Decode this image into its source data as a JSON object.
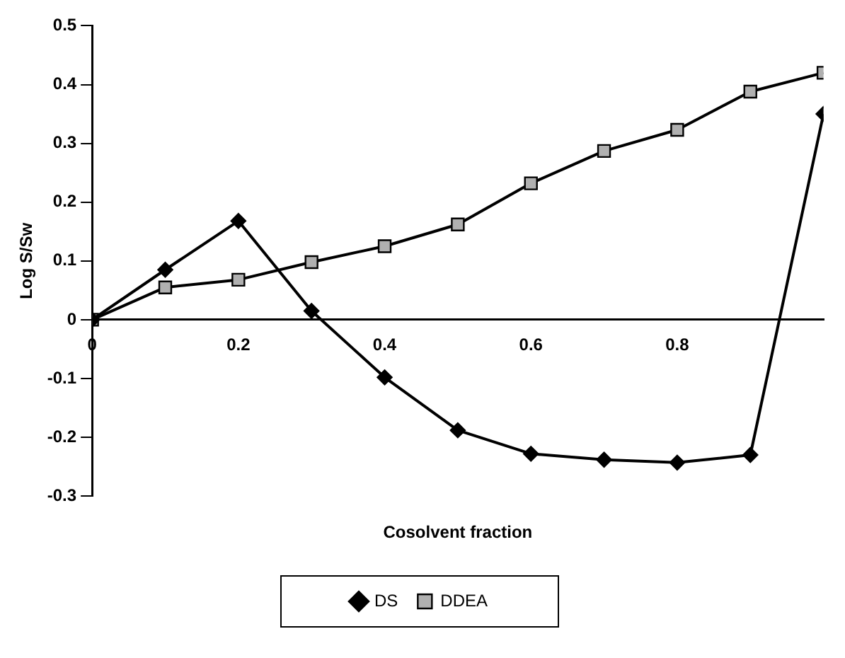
{
  "chart_data": {
    "type": "line",
    "xlabel": "Cosolvent fraction",
    "ylabel": "Log S/Sw",
    "x": [
      0,
      0.1,
      0.2,
      0.3,
      0.4,
      0.5,
      0.6,
      0.7,
      0.8,
      0.9,
      1.0
    ],
    "series": [
      {
        "name": "DS",
        "color": "#000000",
        "marker": "diamond",
        "values": [
          0,
          0.085,
          0.168,
          0.015,
          -0.098,
          -0.188,
          -0.228,
          -0.238,
          -0.243,
          -0.23,
          0.35
        ]
      },
      {
        "name": "DDEA",
        "color": "#000000",
        "marker": "square",
        "values": [
          0,
          0.055,
          0.068,
          0.098,
          0.125,
          0.162,
          0.232,
          0.287,
          0.323,
          0.388,
          0.42
        ]
      }
    ],
    "xlim": [
      0,
      1
    ],
    "xticks": [
      0,
      0.2,
      0.4,
      0.6,
      0.8
    ],
    "ylim": [
      -0.3,
      0.5
    ],
    "yticks": [
      -0.3,
      -0.2,
      -0.1,
      0,
      0.1,
      0.2,
      0.3,
      0.4,
      0.5
    ],
    "grid": false,
    "legend": "bottom",
    "line_style": "solid"
  }
}
